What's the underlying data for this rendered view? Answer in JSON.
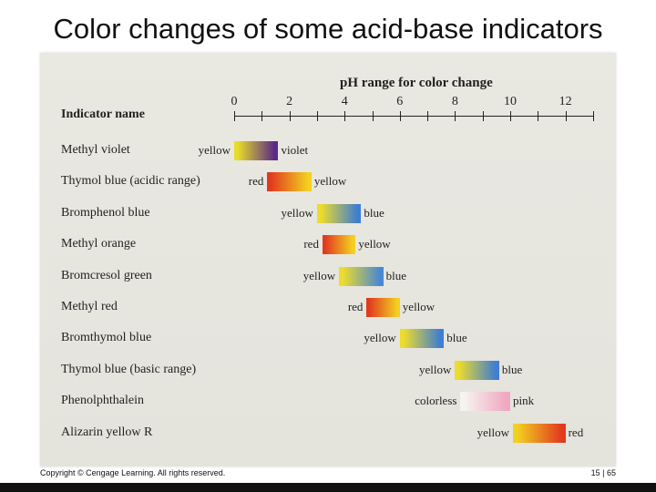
{
  "slide": {
    "title": "Color changes of some acid-base indicators",
    "copyright": "Copyright © Cengage Learning. All rights reserved.",
    "page": "15 | 65"
  },
  "axis": {
    "title": "pH range for color change",
    "ticks": [
      "0",
      "2",
      "4",
      "6",
      "8",
      "10",
      "12"
    ],
    "min": 0,
    "max": 13
  },
  "table": {
    "header": "Indicator name"
  },
  "indicators": [
    {
      "name": "Methyl violet",
      "low": 0.0,
      "high": 1.6,
      "color_low": "yellow",
      "color_high": "violet",
      "hex_low": "#e8dc2a",
      "hex_high": "#5b2a86"
    },
    {
      "name": "Thymol blue (acidic range)",
      "low": 1.2,
      "high": 2.8,
      "color_low": "red",
      "color_high": "yellow",
      "hex_low": "#e23a1f",
      "hex_high": "#f2d020"
    },
    {
      "name": "Bromphenol blue",
      "low": 3.0,
      "high": 4.6,
      "color_low": "yellow",
      "color_high": "blue",
      "hex_low": "#eedc2c",
      "hex_high": "#3f7ed0"
    },
    {
      "name": "Methyl orange",
      "low": 3.2,
      "high": 4.4,
      "color_low": "red",
      "color_high": "yellow",
      "hex_low": "#e23a1f",
      "hex_high": "#f2d020"
    },
    {
      "name": "Bromcresol green",
      "low": 3.8,
      "high": 5.4,
      "color_low": "yellow",
      "color_high": "blue",
      "hex_low": "#eedc2c",
      "hex_high": "#4a88d2"
    },
    {
      "name": "Methyl red",
      "low": 4.8,
      "high": 6.0,
      "color_low": "red",
      "color_high": "yellow",
      "hex_low": "#e23a1f",
      "hex_high": "#f2d020"
    },
    {
      "name": "Bromthymol blue",
      "low": 6.0,
      "high": 7.6,
      "color_low": "yellow",
      "color_high": "blue",
      "hex_low": "#eedc2c",
      "hex_high": "#3f7ed0"
    },
    {
      "name": "Thymol blue (basic range)",
      "low": 8.0,
      "high": 9.6,
      "color_low": "yellow",
      "color_high": "blue",
      "hex_low": "#eedc2c",
      "hex_high": "#3f7ed0"
    },
    {
      "name": "Phenolphthalein",
      "low": 8.2,
      "high": 10.0,
      "color_low": "colorless",
      "color_high": "pink",
      "hex_low": "#f6f4f0",
      "hex_high": "#f0a8c2"
    },
    {
      "name": "Alizarin yellow R",
      "low": 10.1,
      "high": 12.0,
      "color_low": "yellow",
      "color_high": "red",
      "hex_low": "#f2d020",
      "hex_high": "#e23a1f"
    }
  ]
}
